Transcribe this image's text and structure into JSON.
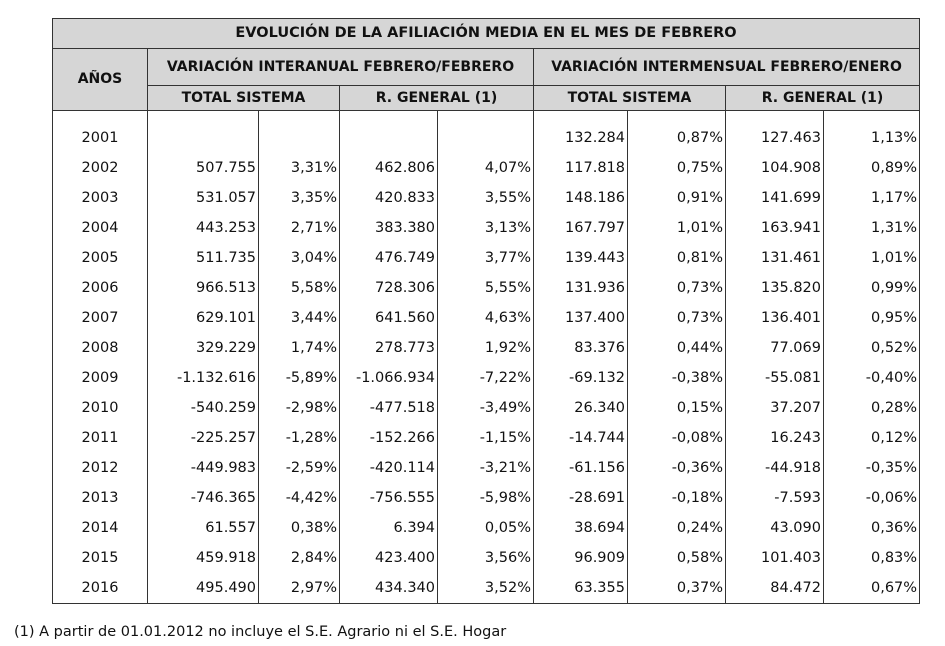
{
  "table": {
    "title": "EVOLUCIÓN DE LA AFILIACIÓN MEDIA EN EL MES DE FEBRERO",
    "years_header": "AÑOS",
    "groups": [
      {
        "label": "VARIACIÓN INTERANUAL FEBRERO/FEBRERO"
      },
      {
        "label": "VARIACIÓN INTERMENSUAL FEBRERO/ENERO"
      }
    ],
    "subheaders": [
      "TOTAL SISTEMA",
      "R. GENERAL (1)",
      "TOTAL SISTEMA",
      "R. GENERAL (1)"
    ],
    "rows": [
      {
        "year": "2001",
        "c1": "",
        "c2": "",
        "c3": "",
        "c4": "",
        "c5": "132.284",
        "c6": "0,87%",
        "c7": "127.463",
        "c8": "1,13%"
      },
      {
        "year": "2002",
        "c1": "507.755",
        "c2": "3,31%",
        "c3": "462.806",
        "c4": "4,07%",
        "c5": "117.818",
        "c6": "0,75%",
        "c7": "104.908",
        "c8": "0,89%"
      },
      {
        "year": "2003",
        "c1": "531.057",
        "c2": "3,35%",
        "c3": "420.833",
        "c4": "3,55%",
        "c5": "148.186",
        "c6": "0,91%",
        "c7": "141.699",
        "c8": "1,17%"
      },
      {
        "year": "2004",
        "c1": "443.253",
        "c2": "2,71%",
        "c3": "383.380",
        "c4": "3,13%",
        "c5": "167.797",
        "c6": "1,01%",
        "c7": "163.941",
        "c8": "1,31%"
      },
      {
        "year": "2005",
        "c1": "511.735",
        "c2": "3,04%",
        "c3": "476.749",
        "c4": "3,77%",
        "c5": "139.443",
        "c6": "0,81%",
        "c7": "131.461",
        "c8": "1,01%"
      },
      {
        "year": "2006",
        "c1": "966.513",
        "c2": "5,58%",
        "c3": "728.306",
        "c4": "5,55%",
        "c5": "131.936",
        "c6": "0,73%",
        "c7": "135.820",
        "c8": "0,99%"
      },
      {
        "year": "2007",
        "c1": "629.101",
        "c2": "3,44%",
        "c3": "641.560",
        "c4": "4,63%",
        "c5": "137.400",
        "c6": "0,73%",
        "c7": "136.401",
        "c8": "0,95%"
      },
      {
        "year": "2008",
        "c1": "329.229",
        "c2": "1,74%",
        "c3": "278.773",
        "c4": "1,92%",
        "c5": "83.376",
        "c6": "0,44%",
        "c7": "77.069",
        "c8": "0,52%"
      },
      {
        "year": "2009",
        "c1": "-1.132.616",
        "c2": "-5,89%",
        "c3": "-1.066.934",
        "c4": "-7,22%",
        "c5": "-69.132",
        "c6": "-0,38%",
        "c7": "-55.081",
        "c8": "-0,40%"
      },
      {
        "year": "2010",
        "c1": "-540.259",
        "c2": "-2,98%",
        "c3": "-477.518",
        "c4": "-3,49%",
        "c5": "26.340",
        "c6": "0,15%",
        "c7": "37.207",
        "c8": "0,28%"
      },
      {
        "year": "2011",
        "c1": "-225.257",
        "c2": "-1,28%",
        "c3": "-152.266",
        "c4": "-1,15%",
        "c5": "-14.744",
        "c6": "-0,08%",
        "c7": "16.243",
        "c8": "0,12%"
      },
      {
        "year": "2012",
        "c1": "-449.983",
        "c2": "-2,59%",
        "c3": "-420.114",
        "c4": "-3,21%",
        "c5": "-61.156",
        "c6": "-0,36%",
        "c7": "-44.918",
        "c8": "-0,35%"
      },
      {
        "year": "2013",
        "c1": "-746.365",
        "c2": "-4,42%",
        "c3": "-756.555",
        "c4": "-5,98%",
        "c5": "-28.691",
        "c6": "-0,18%",
        "c7": "-7.593",
        "c8": "-0,06%"
      },
      {
        "year": "2014",
        "c1": "61.557",
        "c2": "0,38%",
        "c3": "6.394",
        "c4": "0,05%",
        "c5": "38.694",
        "c6": "0,24%",
        "c7": "43.090",
        "c8": "0,36%"
      },
      {
        "year": "2015",
        "c1": "459.918",
        "c2": "2,84%",
        "c3": "423.400",
        "c4": "3,56%",
        "c5": "96.909",
        "c6": "0,58%",
        "c7": "101.403",
        "c8": "0,83%"
      },
      {
        "year": "2016",
        "c1": "495.490",
        "c2": "2,97%",
        "c3": "434.340",
        "c4": "3,52%",
        "c5": "63.355",
        "c6": "0,37%",
        "c7": "84.472",
        "c8": "0,67%"
      }
    ]
  },
  "footnote": "(1) A partir de 01.01.2012 no incluye el S.E. Agrario ni el S.E. Hogar",
  "colors": {
    "header_bg": "#d6d6d6",
    "border": "#333333"
  }
}
